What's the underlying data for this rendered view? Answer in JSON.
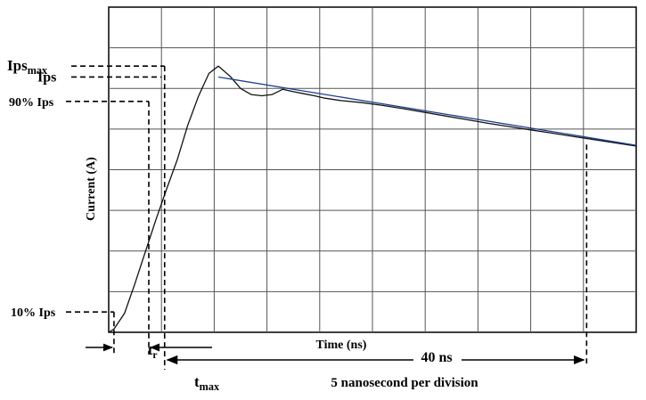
{
  "chart_data": {
    "type": "line",
    "title": "",
    "xlabel": "Time (ns)",
    "ylabel": "Current (A)",
    "division_note": "5 nanosecond per division",
    "x_unit": "ns",
    "ns_per_division": 5,
    "x_divisions": 10,
    "y_divisions": 8,
    "grid": true,
    "series": [
      {
        "x": [
          0,
          0.5,
          1.5,
          2.5,
          3.5,
          4.5,
          5.5,
          6.5,
          7.5,
          8.5,
          9.5,
          10.4,
          11.5,
          12.5,
          13.5,
          14.5,
          15.5,
          16.5,
          17.5,
          18.5,
          19.5,
          20.5,
          22,
          24,
          26,
          28,
          30,
          32,
          34,
          36,
          38,
          40,
          42,
          44,
          46,
          48,
          50
        ],
        "y": [
          0,
          0.08,
          0.47,
          1.21,
          2.0,
          2.79,
          3.53,
          4.25,
          5.1,
          5.8,
          6.37,
          6.55,
          6.3,
          6.0,
          5.85,
          5.82,
          5.85,
          5.98,
          5.92,
          5.87,
          5.82,
          5.76,
          5.7,
          5.65,
          5.58,
          5.5,
          5.41,
          5.32,
          5.23,
          5.14,
          5.06,
          4.98,
          4.9,
          4.82,
          4.74,
          4.66,
          4.58
        ]
      },
      {
        "x": [
          10.4,
          50
        ],
        "y": [
          6.28,
          4.6
        ]
      }
    ],
    "reference_levels": [
      {
        "label": "Ipsmax",
        "label_main": "Ips",
        "label_sub": "max",
        "y": 6.55
      },
      {
        "label": "Ips",
        "label_main": "Ips",
        "label_sub": "",
        "y": 6.28
      },
      {
        "label": "90% Ips",
        "label_main": "90% Ips",
        "label_sub": "",
        "y": 5.68
      },
      {
        "label": "10% Ips",
        "label_main": "10% Ips",
        "label_sub": "",
        "y": 0.5
      }
    ],
    "time_markers": [
      {
        "label": "tr",
        "label_main": "t",
        "label_sub": "r",
        "x0": 0.5,
        "x1": 3.8
      },
      {
        "label": "tmax",
        "label_main": "t",
        "label_sub": "max",
        "x": 5.3
      },
      {
        "label": "40 ns",
        "x0": 5.3,
        "x1": 45.3
      }
    ],
    "xlim": [
      0,
      50
    ],
    "ylim": [
      0,
      8
    ]
  }
}
